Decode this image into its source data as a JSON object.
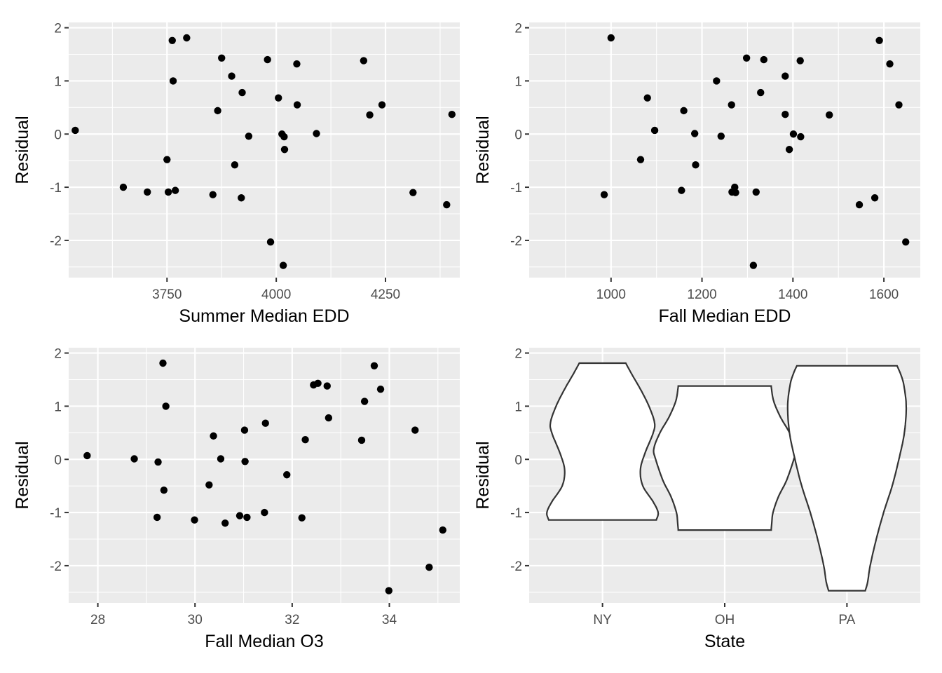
{
  "chart_data": [
    {
      "id": "p1",
      "type": "scatter",
      "xlabel": "Summer Median EDD",
      "ylabel": "Residual",
      "xlim": [
        3525,
        4420
      ],
      "ylim": [
        -2.7,
        2.1
      ],
      "xticks": [
        3750,
        4000,
        4250
      ],
      "xminor": [
        3625,
        3875,
        4125,
        4375
      ],
      "yticks": [
        -2,
        -1,
        0,
        1,
        2
      ],
      "yminor": [
        -2.5,
        -1.5,
        -0.5,
        0.5,
        1.5
      ],
      "points": [
        {
          "x": 3540,
          "y": 0.07
        },
        {
          "x": 3650,
          "y": -1.0
        },
        {
          "x": 3705,
          "y": -1.09
        },
        {
          "x": 3750,
          "y": -0.48
        },
        {
          "x": 3753,
          "y": -1.09
        },
        {
          "x": 3762,
          "y": 1.76
        },
        {
          "x": 3764,
          "y": 1.0
        },
        {
          "x": 3769,
          "y": -1.06
        },
        {
          "x": 3795,
          "y": 1.81
        },
        {
          "x": 3855,
          "y": -1.14
        },
        {
          "x": 3866,
          "y": 0.44
        },
        {
          "x": 3875,
          "y": 1.43
        },
        {
          "x": 3898,
          "y": 1.09
        },
        {
          "x": 3905,
          "y": -0.58
        },
        {
          "x": 3920,
          "y": -1.2
        },
        {
          "x": 3922,
          "y": 0.78
        },
        {
          "x": 3937,
          "y": -0.04
        },
        {
          "x": 3980,
          "y": 1.4
        },
        {
          "x": 3987,
          "y": -2.03
        },
        {
          "x": 4005,
          "y": 0.68
        },
        {
          "x": 4013,
          "y": 0.0
        },
        {
          "x": 4016,
          "y": -2.47
        },
        {
          "x": 4018,
          "y": -0.05
        },
        {
          "x": 4019,
          "y": -0.29
        },
        {
          "x": 4047,
          "y": 1.32
        },
        {
          "x": 4048,
          "y": 0.55
        },
        {
          "x": 4092,
          "y": 0.01
        },
        {
          "x": 4200,
          "y": 1.38
        },
        {
          "x": 4214,
          "y": 0.36
        },
        {
          "x": 4242,
          "y": 0.55
        },
        {
          "x": 4313,
          "y": -1.1
        },
        {
          "x": 4390,
          "y": -1.33
        },
        {
          "x": 4402,
          "y": 0.37
        }
      ]
    },
    {
      "id": "p2",
      "type": "scatter",
      "xlabel": "Fall Median EDD",
      "ylabel": "Residual",
      "xlim": [
        820,
        1680
      ],
      "ylim": [
        -2.7,
        2.1
      ],
      "xticks": [
        1000,
        1200,
        1400,
        1600
      ],
      "xminor": [
        900,
        1100,
        1300,
        1500
      ],
      "yticks": [
        -2,
        -1,
        0,
        1,
        2
      ],
      "yminor": [
        -2.5,
        -1.5,
        -0.5,
        0.5,
        1.5
      ],
      "points": [
        {
          "x": 985,
          "y": -1.14
        },
        {
          "x": 1000,
          "y": 1.81
        },
        {
          "x": 1065,
          "y": -0.48
        },
        {
          "x": 1080,
          "y": 0.68
        },
        {
          "x": 1096,
          "y": 0.07
        },
        {
          "x": 1155,
          "y": -1.06
        },
        {
          "x": 1160,
          "y": 0.44
        },
        {
          "x": 1184,
          "y": 0.01
        },
        {
          "x": 1186,
          "y": -0.58
        },
        {
          "x": 1232,
          "y": 1.0
        },
        {
          "x": 1242,
          "y": -0.04
        },
        {
          "x": 1265,
          "y": 0.55
        },
        {
          "x": 1266,
          "y": -1.09
        },
        {
          "x": 1272,
          "y": -1.0
        },
        {
          "x": 1274,
          "y": -1.1
        },
        {
          "x": 1298,
          "y": 1.43
        },
        {
          "x": 1313,
          "y": -2.47
        },
        {
          "x": 1319,
          "y": -1.09
        },
        {
          "x": 1329,
          "y": 0.78
        },
        {
          "x": 1336,
          "y": 1.4
        },
        {
          "x": 1383,
          "y": 1.09
        },
        {
          "x": 1383,
          "y": 0.37
        },
        {
          "x": 1392,
          "y": -0.29
        },
        {
          "x": 1401,
          "y": 0.0
        },
        {
          "x": 1416,
          "y": 1.38
        },
        {
          "x": 1417,
          "y": -0.05
        },
        {
          "x": 1480,
          "y": 0.36
        },
        {
          "x": 1546,
          "y": -1.33
        },
        {
          "x": 1580,
          "y": -1.2
        },
        {
          "x": 1590,
          "y": 1.76
        },
        {
          "x": 1613,
          "y": 1.32
        },
        {
          "x": 1633,
          "y": 0.55
        },
        {
          "x": 1648,
          "y": -2.03
        }
      ]
    },
    {
      "id": "p3",
      "type": "scatter",
      "xlabel": "Fall Median O3",
      "ylabel": "Residual",
      "xlim": [
        27.4,
        35.45
      ],
      "ylim": [
        -2.7,
        2.1
      ],
      "xticks": [
        28,
        30,
        32,
        34
      ],
      "xminor": [
        29,
        31,
        33,
        35
      ],
      "yticks": [
        -2,
        -1,
        0,
        1,
        2
      ],
      "yminor": [
        -2.5,
        -1.5,
        -0.5,
        0.5,
        1.5
      ],
      "points": [
        {
          "x": 27.78,
          "y": 0.07
        },
        {
          "x": 28.75,
          "y": 0.01
        },
        {
          "x": 29.22,
          "y": -1.09
        },
        {
          "x": 29.24,
          "y": -0.05
        },
        {
          "x": 29.34,
          "y": 1.81
        },
        {
          "x": 29.36,
          "y": -0.58
        },
        {
          "x": 29.4,
          "y": 1.0
        },
        {
          "x": 29.99,
          "y": -1.14
        },
        {
          "x": 30.29,
          "y": -0.48
        },
        {
          "x": 30.38,
          "y": 0.44
        },
        {
          "x": 30.53,
          "y": 0.01
        },
        {
          "x": 30.62,
          "y": -1.2
        },
        {
          "x": 30.92,
          "y": -1.06
        },
        {
          "x": 31.02,
          "y": 0.55
        },
        {
          "x": 31.03,
          "y": -0.04
        },
        {
          "x": 31.07,
          "y": -1.09
        },
        {
          "x": 31.43,
          "y": -1.0
        },
        {
          "x": 31.45,
          "y": 0.68
        },
        {
          "x": 31.89,
          "y": -0.29
        },
        {
          "x": 32.2,
          "y": -1.1
        },
        {
          "x": 32.27,
          "y": 0.37
        },
        {
          "x": 32.44,
          "y": 1.4
        },
        {
          "x": 32.53,
          "y": 1.43
        },
        {
          "x": 32.72,
          "y": 1.38
        },
        {
          "x": 32.75,
          "y": 0.78
        },
        {
          "x": 33.43,
          "y": 0.36
        },
        {
          "x": 33.49,
          "y": 1.09
        },
        {
          "x": 33.69,
          "y": 1.76
        },
        {
          "x": 33.82,
          "y": 1.32
        },
        {
          "x": 33.99,
          "y": -2.47
        },
        {
          "x": 34.53,
          "y": 0.55
        },
        {
          "x": 34.82,
          "y": -2.03
        },
        {
          "x": 35.1,
          "y": -1.33
        }
      ]
    },
    {
      "id": "p4",
      "type": "violin",
      "xlabel": "State",
      "ylabel": "Residual",
      "categories": [
        "NY",
        "OH",
        "PA"
      ],
      "ylim": [
        -2.7,
        2.1
      ],
      "yticks": [
        -2,
        -1,
        0,
        1,
        2
      ],
      "yminor": [
        -2.5,
        -1.5,
        -0.5,
        0.5,
        1.5
      ],
      "violins": [
        {
          "category": "NY",
          "profile": [
            [
              -1.14,
              0.88
            ],
            [
              -1.0,
              0.91
            ],
            [
              -0.8,
              0.83
            ],
            [
              -0.5,
              0.66
            ],
            [
              -0.2,
              0.62
            ],
            [
              0.1,
              0.69
            ],
            [
              0.5,
              0.83
            ],
            [
              0.7,
              0.85
            ],
            [
              1.0,
              0.76
            ],
            [
              1.3,
              0.63
            ],
            [
              1.6,
              0.48
            ],
            [
              1.81,
              0.38
            ]
          ]
        },
        {
          "category": "OH",
          "profile": [
            [
              -1.33,
              0.76
            ],
            [
              -1.2,
              0.77
            ],
            [
              -1.0,
              0.79
            ],
            [
              -0.7,
              0.88
            ],
            [
              -0.4,
              1.01
            ],
            [
              0.0,
              1.13
            ],
            [
              0.2,
              1.16
            ],
            [
              0.5,
              1.06
            ],
            [
              0.8,
              0.91
            ],
            [
              1.1,
              0.8
            ],
            [
              1.38,
              0.76
            ]
          ]
        },
        {
          "category": "PA",
          "profile": [
            [
              -2.47,
              0.3
            ],
            [
              -2.3,
              0.34
            ],
            [
              -2.0,
              0.38
            ],
            [
              -1.5,
              0.48
            ],
            [
              -1.0,
              0.6
            ],
            [
              -0.5,
              0.74
            ],
            [
              0.0,
              0.85
            ],
            [
              0.5,
              0.94
            ],
            [
              1.0,
              0.97
            ],
            [
              1.4,
              0.93
            ],
            [
              1.6,
              0.88
            ],
            [
              1.76,
              0.82
            ]
          ]
        }
      ]
    }
  ]
}
